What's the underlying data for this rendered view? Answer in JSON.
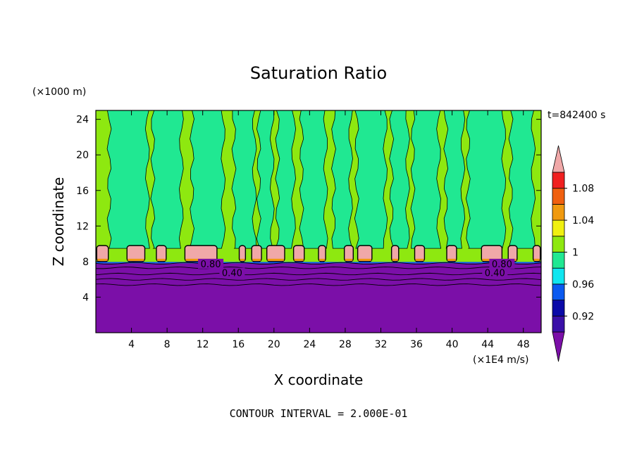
{
  "chart_data": {
    "type": "contour",
    "title": "Saturation Ratio",
    "xlabel": "X coordinate",
    "ylabel": "Z coordinate",
    "x_units": "(×1E4 m/s)",
    "y_units": "(×1000 m)",
    "time_label": "t=842400 s",
    "footer": "CONTOUR INTERVAL = 2.000E-01",
    "xlim": [
      0,
      50
    ],
    "ylim": [
      0,
      25
    ],
    "x_ticks": [
      4,
      8,
      12,
      16,
      20,
      24,
      28,
      32,
      36,
      40,
      44,
      48
    ],
    "y_ticks": [
      4,
      8,
      12,
      16,
      20,
      24
    ],
    "x_tick_labels": [
      "4",
      "8",
      "12",
      "16",
      "20",
      "24",
      "28",
      "32",
      "36",
      "40",
      "44",
      "48"
    ],
    "y_tick_labels": [
      "4",
      "8",
      "12",
      "16",
      "20",
      "24"
    ],
    "contour_labels": [
      {
        "text": "0.80",
        "x": 12.9,
        "z": 7.6
      },
      {
        "text": "0.40",
        "x": 15.3,
        "z": 6.6
      },
      {
        "text": "0.80",
        "x": 45.6,
        "z": 7.6
      },
      {
        "text": "0.40",
        "x": 44.8,
        "z": 6.6
      }
    ],
    "colorbar": {
      "levels_low_to_high": [
        {
          "color": "#7b0fa8"
        },
        {
          "color": "#3a10a8"
        },
        {
          "color": "#0a0aa8"
        },
        {
          "color": "#0a5af0"
        },
        {
          "color": "#10e6f0"
        },
        {
          "color": "#20e892"
        },
        {
          "color": "#8ee810"
        },
        {
          "color": "#f0f010"
        },
        {
          "color": "#f09a10"
        },
        {
          "color": "#f06010"
        },
        {
          "color": "#f02020"
        },
        {
          "color": "#f0a8a8"
        }
      ],
      "tick_labels": [
        "0.92",
        "0.96",
        "1",
        "1.04",
        "1.08"
      ],
      "tick_values": [
        0.92,
        0.96,
        1.0,
        1.04,
        1.08
      ]
    },
    "regions": {
      "dry_layer_top_z": 7.8,
      "supersat_band_z": [
        8.0,
        9.8
      ],
      "background_color": "#8ee810",
      "column_color": "#20e892",
      "dry_color": "#7b0fa8",
      "band_color": "#f0a8a8",
      "band_edge_color": "#f09a10",
      "columns": [
        {
          "x0": 1.5,
          "x1": 5.8
        },
        {
          "x0": 6.4,
          "x1": 9.6
        },
        {
          "x0": 10.8,
          "x1": 14.3
        },
        {
          "x0": 15.5,
          "x1": 17.8
        },
        {
          "x0": 18.3,
          "x1": 19.8
        },
        {
          "x0": 20.4,
          "x1": 22.2
        },
        {
          "x0": 23.1,
          "x1": 25.8
        },
        {
          "x0": 26.7,
          "x1": 28.6
        },
        {
          "x0": 29.3,
          "x1": 32.5
        },
        {
          "x0": 33.2,
          "x1": 35.0
        },
        {
          "x0": 35.6,
          "x1": 38.5
        },
        {
          "x0": 39.3,
          "x1": 41.2
        },
        {
          "x0": 41.8,
          "x1": 45.8
        },
        {
          "x0": 46.6,
          "x1": 49.1
        }
      ],
      "bumps": [
        {
          "x0": 0.1,
          "x1": 1.4
        },
        {
          "x0": 3.5,
          "x1": 5.5
        },
        {
          "x0": 6.8,
          "x1": 7.9
        },
        {
          "x0": 10.0,
          "x1": 13.6
        },
        {
          "x0": 16.1,
          "x1": 16.8
        },
        {
          "x0": 17.5,
          "x1": 18.6
        },
        {
          "x0": 19.2,
          "x1": 21.2
        },
        {
          "x0": 22.2,
          "x1": 23.4
        },
        {
          "x0": 25.0,
          "x1": 25.8
        },
        {
          "x0": 27.9,
          "x1": 28.9
        },
        {
          "x0": 29.4,
          "x1": 31.0
        },
        {
          "x0": 33.2,
          "x1": 34.0
        },
        {
          "x0": 35.8,
          "x1": 36.9
        },
        {
          "x0": 39.4,
          "x1": 40.5
        },
        {
          "x0": 43.3,
          "x1": 45.6
        },
        {
          "x0": 46.3,
          "x1": 47.3
        },
        {
          "x0": 49.1,
          "x1": 49.9
        }
      ]
    }
  }
}
